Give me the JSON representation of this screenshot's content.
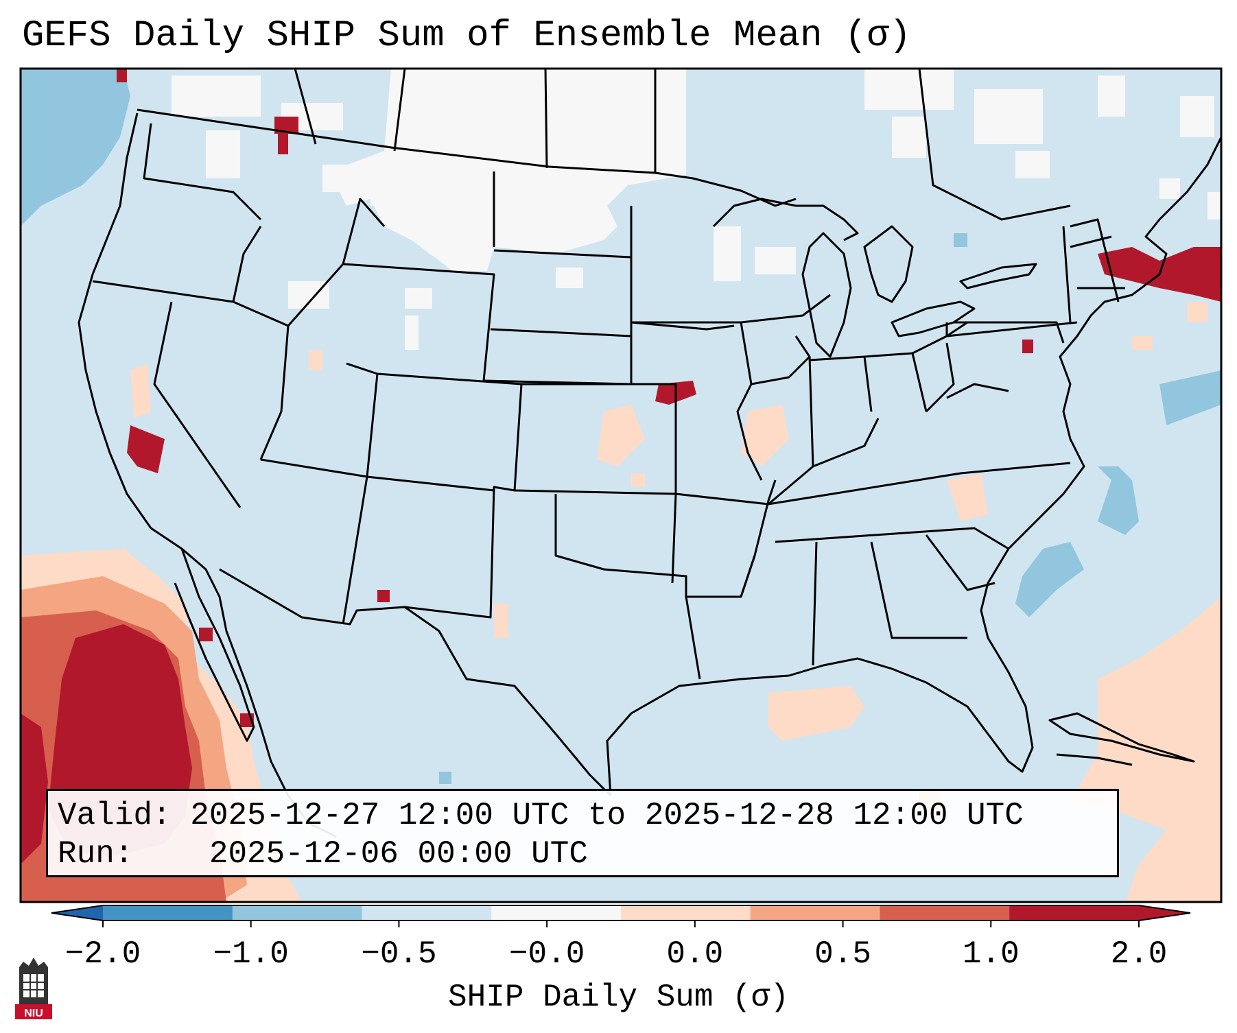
{
  "title": "GEFS Daily SHIP Sum of Ensemble Mean (σ)",
  "info": {
    "valid_label": "Valid:",
    "valid_value": "2025-12-27 12:00 UTC to 2025-12-28 12:00 UTC",
    "run_label": "Run:",
    "run_value": "2025-12-06 00:00 UTC"
  },
  "colorbar": {
    "label": "SHIP Daily Sum (σ)",
    "ticks": [
      "−2.0",
      "−1.0",
      "−0.5",
      "−0.0",
      "0.0",
      "0.5",
      "1.0",
      "2.0"
    ],
    "colors": [
      "#4393c3",
      "#92c5de",
      "#d1e5f0",
      "#f7f7f7",
      "#fddbc7",
      "#f4a582",
      "#d6604d",
      "#b2182b"
    ],
    "extend": "both"
  },
  "map": {
    "projection": "Lambert conformal",
    "region": "Continental United States",
    "background_color": "#d1e5f0",
    "boundaries": [
      "coastlines",
      "country borders",
      "state borders"
    ]
  },
  "logo": {
    "text": "NIU",
    "color": "#c8102e",
    "icon": "university-building-icon"
  }
}
